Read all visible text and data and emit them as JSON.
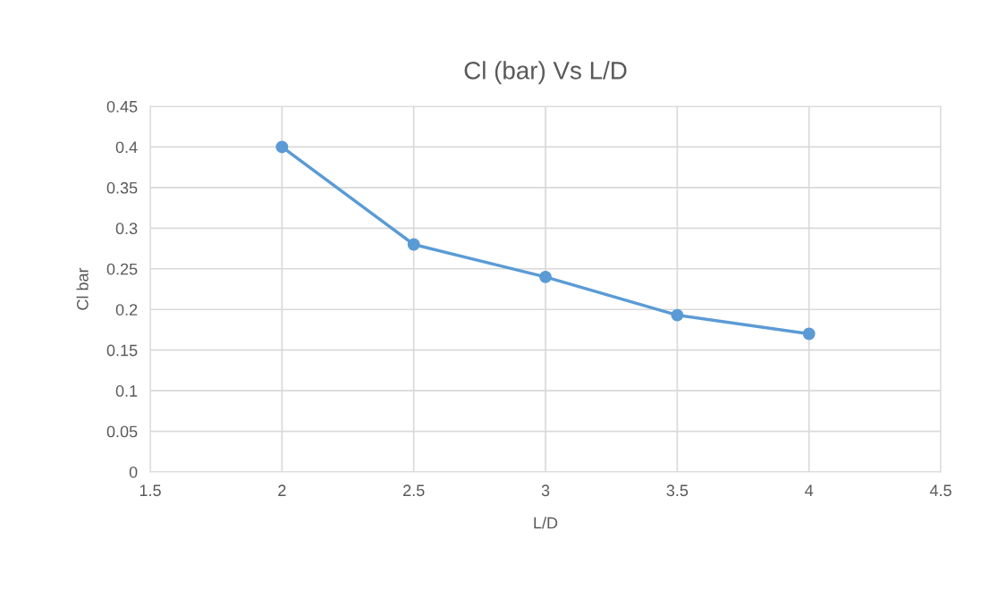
{
  "chart_data": {
    "type": "line",
    "title": "Cl (bar) Vs L/D",
    "xlabel": "L/D",
    "ylabel": "Cl bar",
    "x": [
      2,
      2.5,
      3,
      3.5,
      4
    ],
    "series": [
      {
        "color": "#5b9bd5",
        "values": [
          0.4,
          0.28,
          0.24,
          0.193,
          0.17
        ]
      }
    ],
    "xlim": [
      1.5,
      4.5
    ],
    "xticks": [
      1.5,
      2,
      2.5,
      3,
      3.5,
      4,
      4.5
    ],
    "ylim": [
      0,
      0.45
    ],
    "yticks": [
      0,
      0.05,
      0.1,
      0.15,
      0.2,
      0.25,
      0.3,
      0.35,
      0.4,
      0.45
    ],
    "grid": true,
    "marker": "circle",
    "line_style": "solid"
  }
}
